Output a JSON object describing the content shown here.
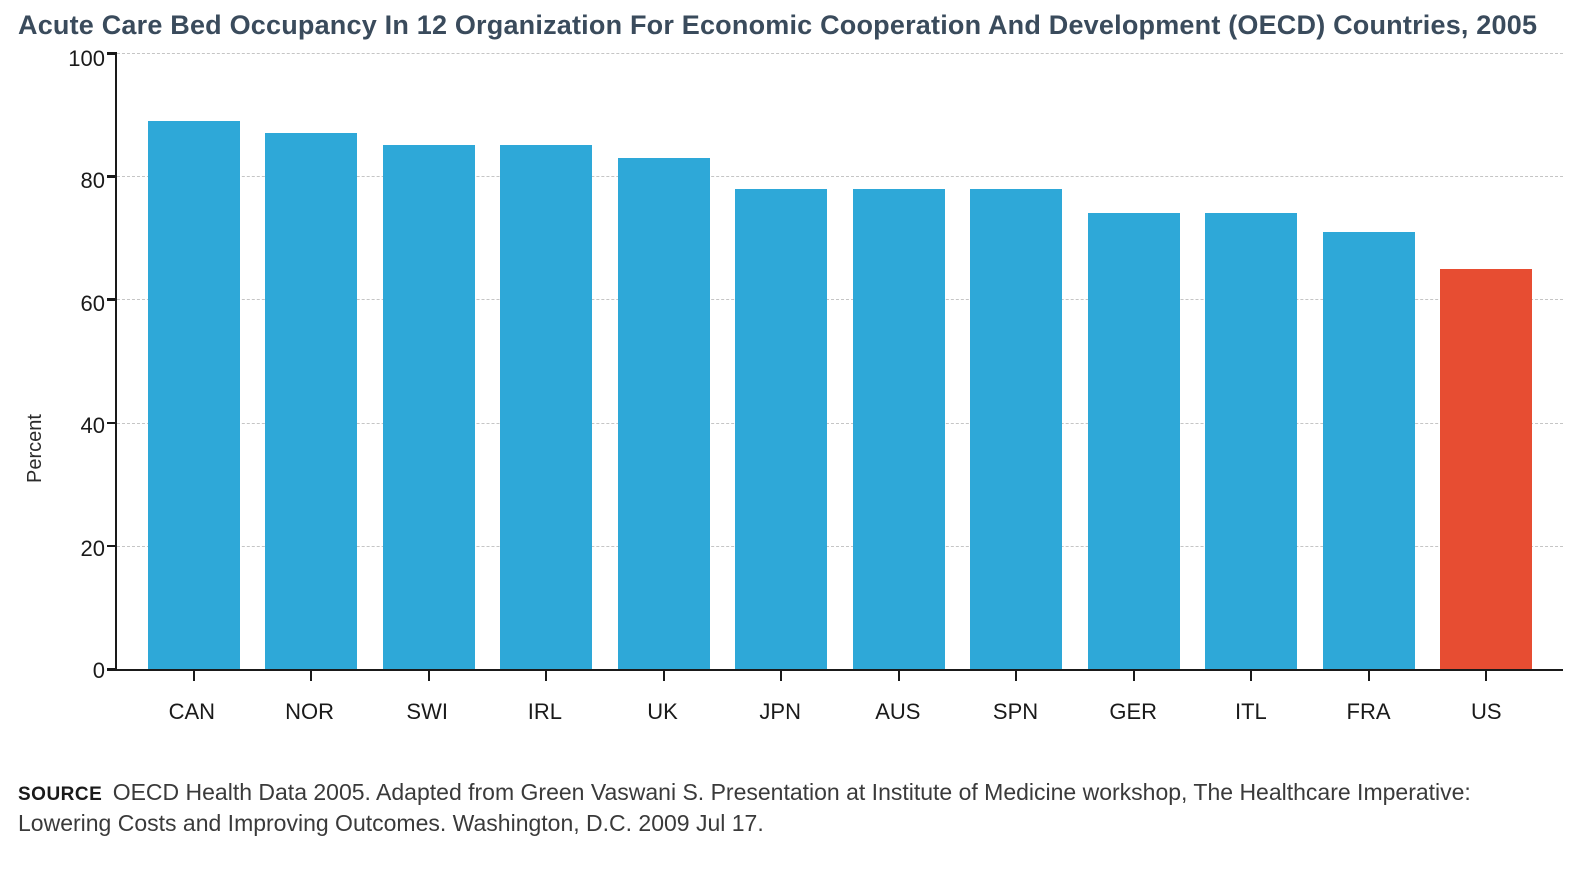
{
  "title": "Acute Care Bed Occupancy In 12 Organization For Economic Cooperation And Development (OECD) Countries, 2005",
  "chart": {
    "type": "bar",
    "ylabel": "Percent",
    "ylim": [
      0,
      100
    ],
    "ytick_step": 20,
    "yticks": [
      100,
      80,
      60,
      40,
      20,
      0
    ],
    "background_color": "#ffffff",
    "grid_color": "#c5c5c5",
    "grid_style": "dashed",
    "axis_color": "#1a1a1a",
    "axis_width": 2.5,
    "bar_width_ratio": 0.78,
    "title_color": "#3a4b5c",
    "title_fontsize": 27,
    "label_fontsize": 20,
    "tick_fontsize": 22,
    "categories": [
      "CAN",
      "NOR",
      "SWI",
      "IRL",
      "UK",
      "JPN",
      "AUS",
      "SPN",
      "GER",
      "ITL",
      "FRA",
      "US"
    ],
    "values": [
      89,
      87,
      85,
      85,
      83,
      78,
      78,
      78,
      74,
      74,
      71,
      65
    ],
    "bar_colors": [
      "#2ea8d8",
      "#2ea8d8",
      "#2ea8d8",
      "#2ea8d8",
      "#2ea8d8",
      "#2ea8d8",
      "#2ea8d8",
      "#2ea8d8",
      "#2ea8d8",
      "#2ea8d8",
      "#2ea8d8",
      "#e74d32"
    ]
  },
  "source": {
    "label": "source",
    "text": "OECD Health Data 2005. Adapted from Green Vaswani S. Presentation at Institute of Medicine workshop, The Healthcare Imperative: Lowering Costs and Improving Outcomes. Washington, D.C. 2009 Jul 17."
  }
}
